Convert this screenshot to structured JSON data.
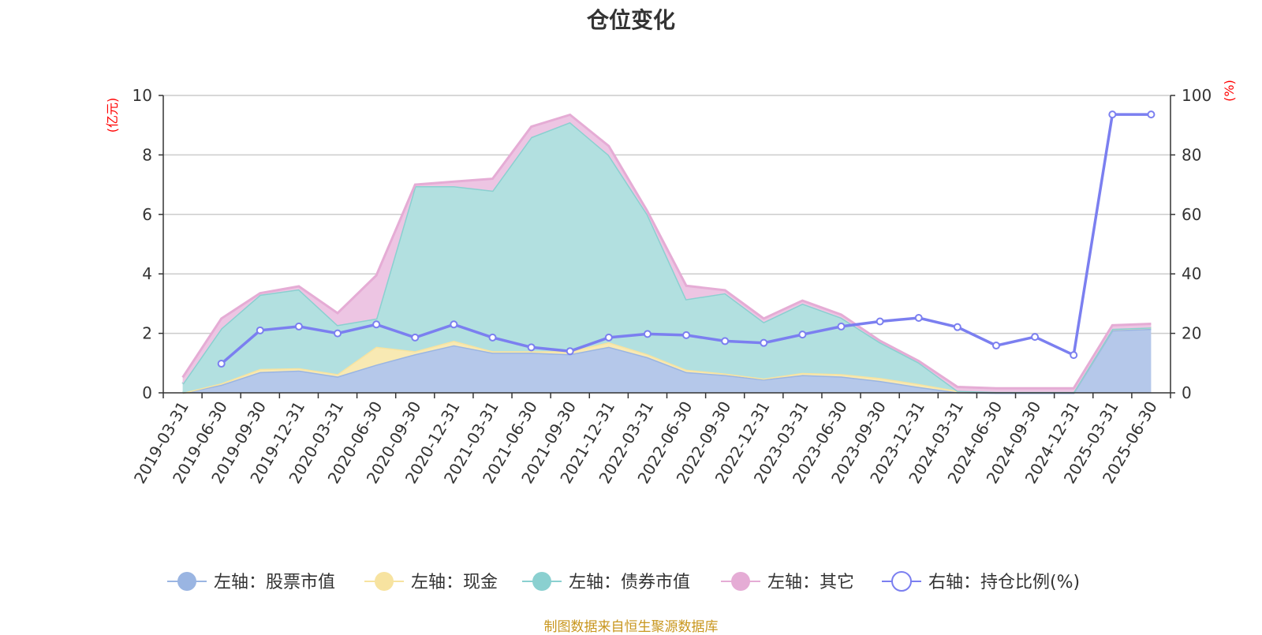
{
  "chart_data": {
    "type": "area",
    "title": "仓位变化",
    "left_axis": {
      "unit_label": "(亿元)",
      "ylim": [
        0,
        10
      ],
      "ticks": [
        0,
        2,
        4,
        6,
        8,
        10
      ]
    },
    "right_axis": {
      "unit_label": "(%)",
      "ylim": [
        0,
        100
      ],
      "ticks": [
        0,
        20,
        40,
        60,
        80,
        100
      ]
    },
    "grid": true,
    "legend_position": "bottom",
    "x": [
      "2019-03-31",
      "2019-06-30",
      "2019-09-30",
      "2019-12-31",
      "2020-03-31",
      "2020-06-30",
      "2020-09-30",
      "2020-12-31",
      "2021-03-31",
      "2021-06-30",
      "2021-09-30",
      "2021-12-31",
      "2022-03-31",
      "2022-06-30",
      "2022-09-30",
      "2022-12-31",
      "2023-03-31",
      "2023-06-30",
      "2023-09-30",
      "2023-12-31",
      "2024-03-31",
      "2024-06-30",
      "2024-09-30",
      "2024-12-31",
      "2025-03-31",
      "2025-06-30"
    ],
    "series": [
      {
        "name": "左轴：股票市值",
        "axis": "left",
        "kind": "stacked-area",
        "color": "#9ab5e2",
        "fill": "#b5c8ea",
        "values": [
          0,
          0.27,
          0.7,
          0.75,
          0.55,
          0.95,
          1.3,
          1.6,
          1.35,
          1.35,
          1.3,
          1.55,
          1.2,
          0.7,
          0.6,
          0.45,
          0.6,
          0.55,
          0.4,
          0.2,
          0.02,
          0,
          0,
          0,
          2.1,
          2.15
        ]
      },
      {
        "name": "左轴：现金",
        "axis": "left",
        "kind": "stacked-area",
        "color": "#f7e3a0",
        "fill": "#f8e9b3",
        "values": [
          0,
          0.05,
          0.1,
          0.08,
          0.08,
          0.6,
          0.1,
          0.15,
          0.05,
          0.05,
          0.1,
          0.15,
          0.1,
          0.08,
          0.05,
          0.03,
          0.07,
          0.08,
          0.1,
          0.1,
          0.05,
          0.03,
          0.03,
          0.03,
          0.05,
          0.05
        ]
      },
      {
        "name": "左轴：债券市值",
        "axis": "left",
        "kind": "stacked-area",
        "color": "#8ad0d0",
        "fill": "#b2e0e0",
        "values": [
          0.3,
          1.85,
          2.5,
          2.65,
          1.65,
          0.95,
          5.55,
          5.2,
          5.4,
          7.2,
          7.7,
          6.3,
          4.7,
          2.37,
          2.7,
          1.9,
          2.33,
          1.9,
          1.2,
          0.72,
          0,
          0,
          0,
          0,
          0,
          0
        ]
      },
      {
        "name": "左轴：其它",
        "axis": "left",
        "kind": "stacked-area",
        "color": "#e5acd5",
        "fill": "#edc5e3",
        "values": [
          0.22,
          0.33,
          0.05,
          0.1,
          0.4,
          1.45,
          0.05,
          0.15,
          0.4,
          0.35,
          0.25,
          0.3,
          0.1,
          0.45,
          0.1,
          0.12,
          0.1,
          0.1,
          0.05,
          0.05,
          0.13,
          0.12,
          0.12,
          0.12,
          0.12,
          0.12
        ]
      },
      {
        "name": "右轴：持仓比例(%)",
        "axis": "right",
        "kind": "line",
        "color": "#7b7ff0",
        "values": [
          null,
          9.8,
          21,
          22.3,
          20,
          23,
          18.6,
          23,
          18.6,
          15.3,
          14,
          18.6,
          19.8,
          19.4,
          17.4,
          16.8,
          19.6,
          22.3,
          24,
          25.2,
          22.1,
          15.9,
          18.8,
          12.7,
          93.6,
          93.6
        ]
      }
    ]
  },
  "footer": {
    "source_text": "制图数据来自恒生聚源数据库"
  }
}
